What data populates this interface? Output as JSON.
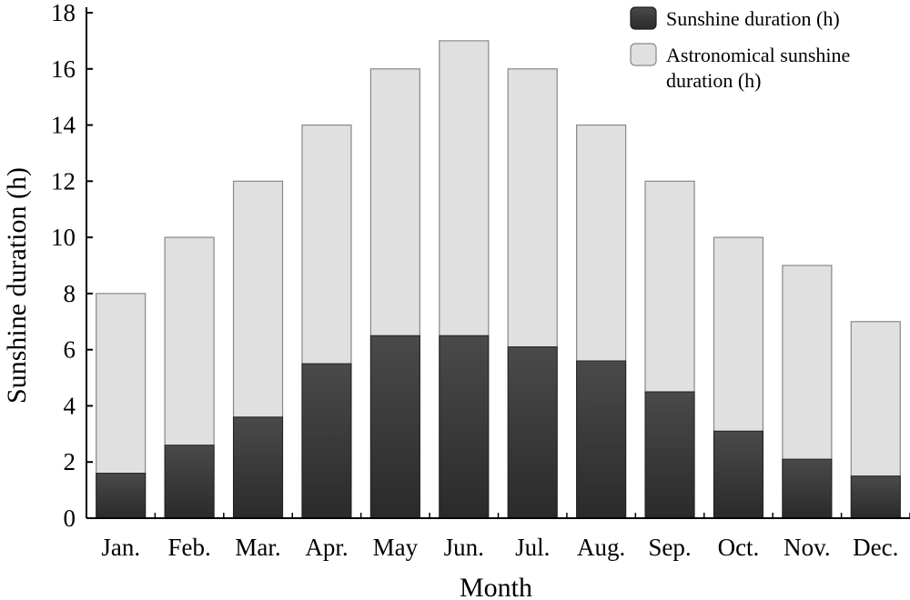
{
  "chart_data": {
    "type": "bar",
    "stacked": "overlay",
    "categories": [
      "Jan.",
      "Feb.",
      "Mar.",
      "Apr.",
      "May",
      "Jun.",
      "Jul.",
      "Aug.",
      "Sep.",
      "Oct.",
      "Nov.",
      "Dec."
    ],
    "series": [
      {
        "name": "Sunshine duration (h)",
        "color": "#3a3a3a",
        "values": [
          1.6,
          2.6,
          3.6,
          5.5,
          6.5,
          6.5,
          6.1,
          5.6,
          4.5,
          3.1,
          2.1,
          1.5
        ]
      },
      {
        "name": "Astronomical sunshine duration (h)",
        "legend_lines": [
          "Astronomical sunshine",
          "duration (h)"
        ],
        "color": "#e0e0e0",
        "values": [
          8,
          10,
          12,
          14,
          16,
          17,
          16,
          14,
          12,
          10,
          9,
          7
        ]
      }
    ],
    "xlabel": "Month",
    "ylabel": "Sunshine duration (h)",
    "ylim": [
      0,
      18
    ],
    "yticks": [
      0,
      2,
      4,
      6,
      8,
      10,
      12,
      14,
      16,
      18
    ],
    "grid": false,
    "legend_position": "top-right"
  }
}
